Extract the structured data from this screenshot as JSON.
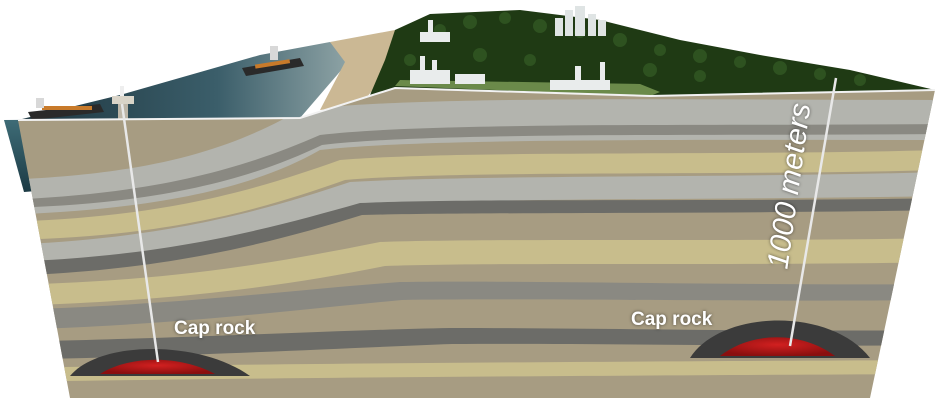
{
  "labels": {
    "cap_rock_left": "Cap rock",
    "cap_rock_right": "Cap rock",
    "depth": "1000 meters"
  },
  "colors": {
    "sea": "#2f5a66",
    "deep_sea": "#1c3a44",
    "sand": "#cbb894",
    "forest": "#1f3a14",
    "grass": "#6b8a4a",
    "gas_reservoir": "#b01818",
    "cap_rock": "#3b3b3b",
    "layer_light": "#b3b4ae",
    "layer_tan": "#a79c82",
    "layer_dark": "#6c6c68",
    "layer_yellow": "#c8bd8c",
    "pipe": "#e8e8e8"
  },
  "icons": [
    "tanker-ship-icon",
    "offshore-platform-icon",
    "industrial-plant-icon",
    "city-skyline-icon"
  ]
}
